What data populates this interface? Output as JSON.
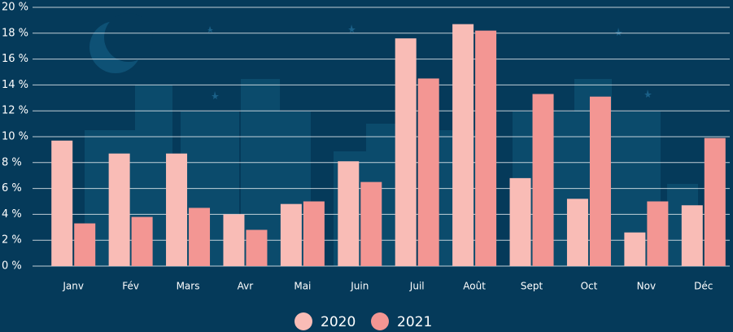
{
  "chart_data": {
    "type": "bar",
    "categories": [
      "Janv",
      "Fév",
      "Mars",
      "Avr",
      "Mai",
      "Juin",
      "Juil",
      "Août",
      "Sept",
      "Oct",
      "Nov",
      "Déc"
    ],
    "series": [
      {
        "name": "2020",
        "color": "#f9bcb6",
        "values": [
          9.7,
          8.7,
          8.7,
          4.0,
          4.8,
          8.1,
          17.6,
          18.7,
          6.8,
          5.2,
          2.6,
          4.7
        ]
      },
      {
        "name": "2021",
        "color": "#f39693",
        "values": [
          3.3,
          3.8,
          4.5,
          2.8,
          5.0,
          6.5,
          14.5,
          18.2,
          13.3,
          13.1,
          5.0,
          9.9
        ]
      }
    ],
    "ylim": [
      0,
      20
    ],
    "yticks": [
      {
        "value": 0,
        "label": "0 %"
      },
      {
        "value": 2,
        "label": "2 %"
      },
      {
        "value": 4,
        "label": "4 %"
      },
      {
        "value": 6,
        "label": "6 %"
      },
      {
        "value": 8,
        "label": "8 %"
      },
      {
        "value": 10,
        "label": "10 %"
      },
      {
        "value": 12,
        "label": "12 %"
      },
      {
        "value": 14,
        "label": "14 %"
      },
      {
        "value": 16,
        "label": "16 %"
      },
      {
        "value": 18,
        "label": "18 %"
      },
      {
        "value": 20,
        "label": "20 %"
      }
    ],
    "grid": true
  }
}
